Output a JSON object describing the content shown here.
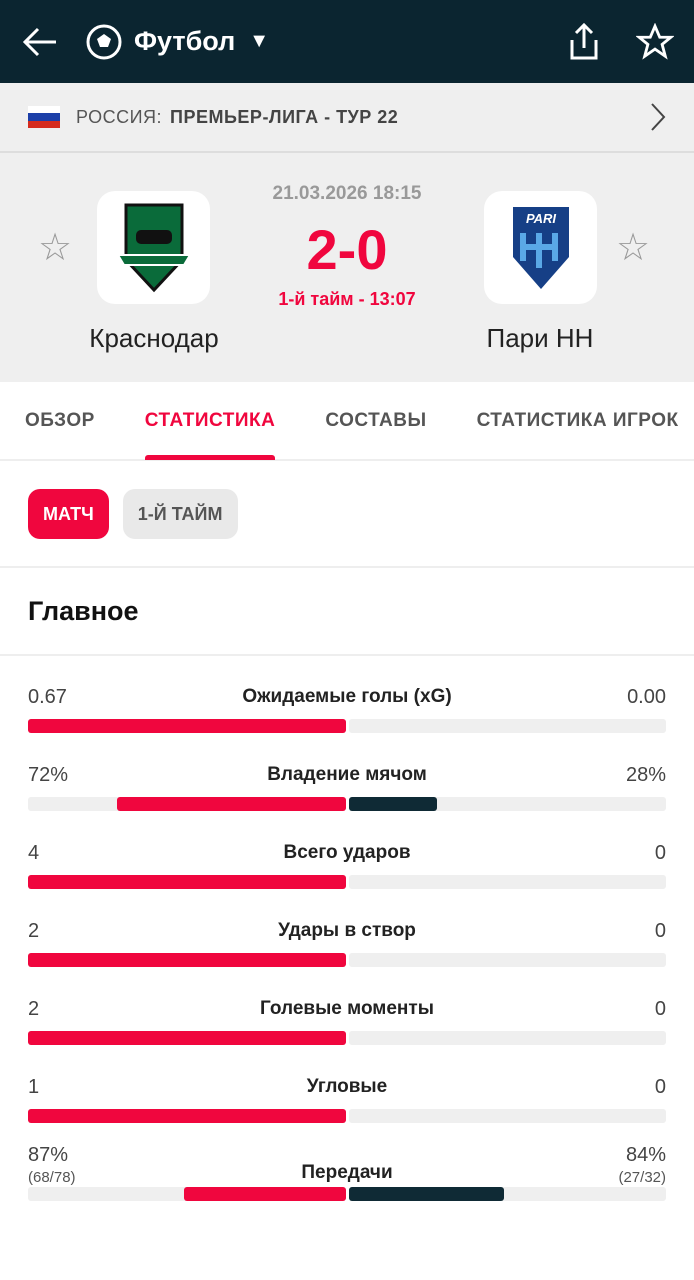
{
  "header": {
    "title": "Футбол"
  },
  "league": {
    "country": "РОССИЯ:",
    "name": "ПРЕМЬЕР-ЛИГА - ТУР 22"
  },
  "match": {
    "date": "21.03.2026 18:15",
    "score": "2-0",
    "status": "1-й тайм - 13:07",
    "home": "Краснодар",
    "away": "Пари НН",
    "away_logo_text": "PARI",
    "colors": {
      "accent": "#f0063e",
      "dark": "#0b2530"
    }
  },
  "tabs": [
    "ОБЗОР",
    "СТАТИСТИКА",
    "СОСТАВЫ",
    "СТАТИСТИКА ИГРОК"
  ],
  "chips": [
    "МАТЧ",
    "1-Й ТАЙМ"
  ],
  "section": "Главное",
  "stats": [
    {
      "label": "Ожидаемые голы (xG)",
      "home": "0.67",
      "away": "0.00",
      "home_fill": 1.0,
      "away_fill": 0
    },
    {
      "label": "Владение мячом",
      "home": "72%",
      "away": "28%",
      "home_fill": 0.72,
      "away_fill": 0.28
    },
    {
      "label": "Всего ударов",
      "home": "4",
      "away": "0",
      "home_fill": 1.0,
      "away_fill": 0
    },
    {
      "label": "Удары в створ",
      "home": "2",
      "away": "0",
      "home_fill": 1.0,
      "away_fill": 0
    },
    {
      "label": "Голевые моменты",
      "home": "2",
      "away": "0",
      "home_fill": 1.0,
      "away_fill": 0
    },
    {
      "label": "Угловые",
      "home": "1",
      "away": "0",
      "home_fill": 1.0,
      "away_fill": 0
    },
    {
      "label": "Передачи",
      "home": "87%",
      "away": "84%",
      "home_sub": "(68/78)",
      "away_sub": "(27/32)",
      "home_fill": 0.51,
      "away_fill": 0.49
    }
  ]
}
